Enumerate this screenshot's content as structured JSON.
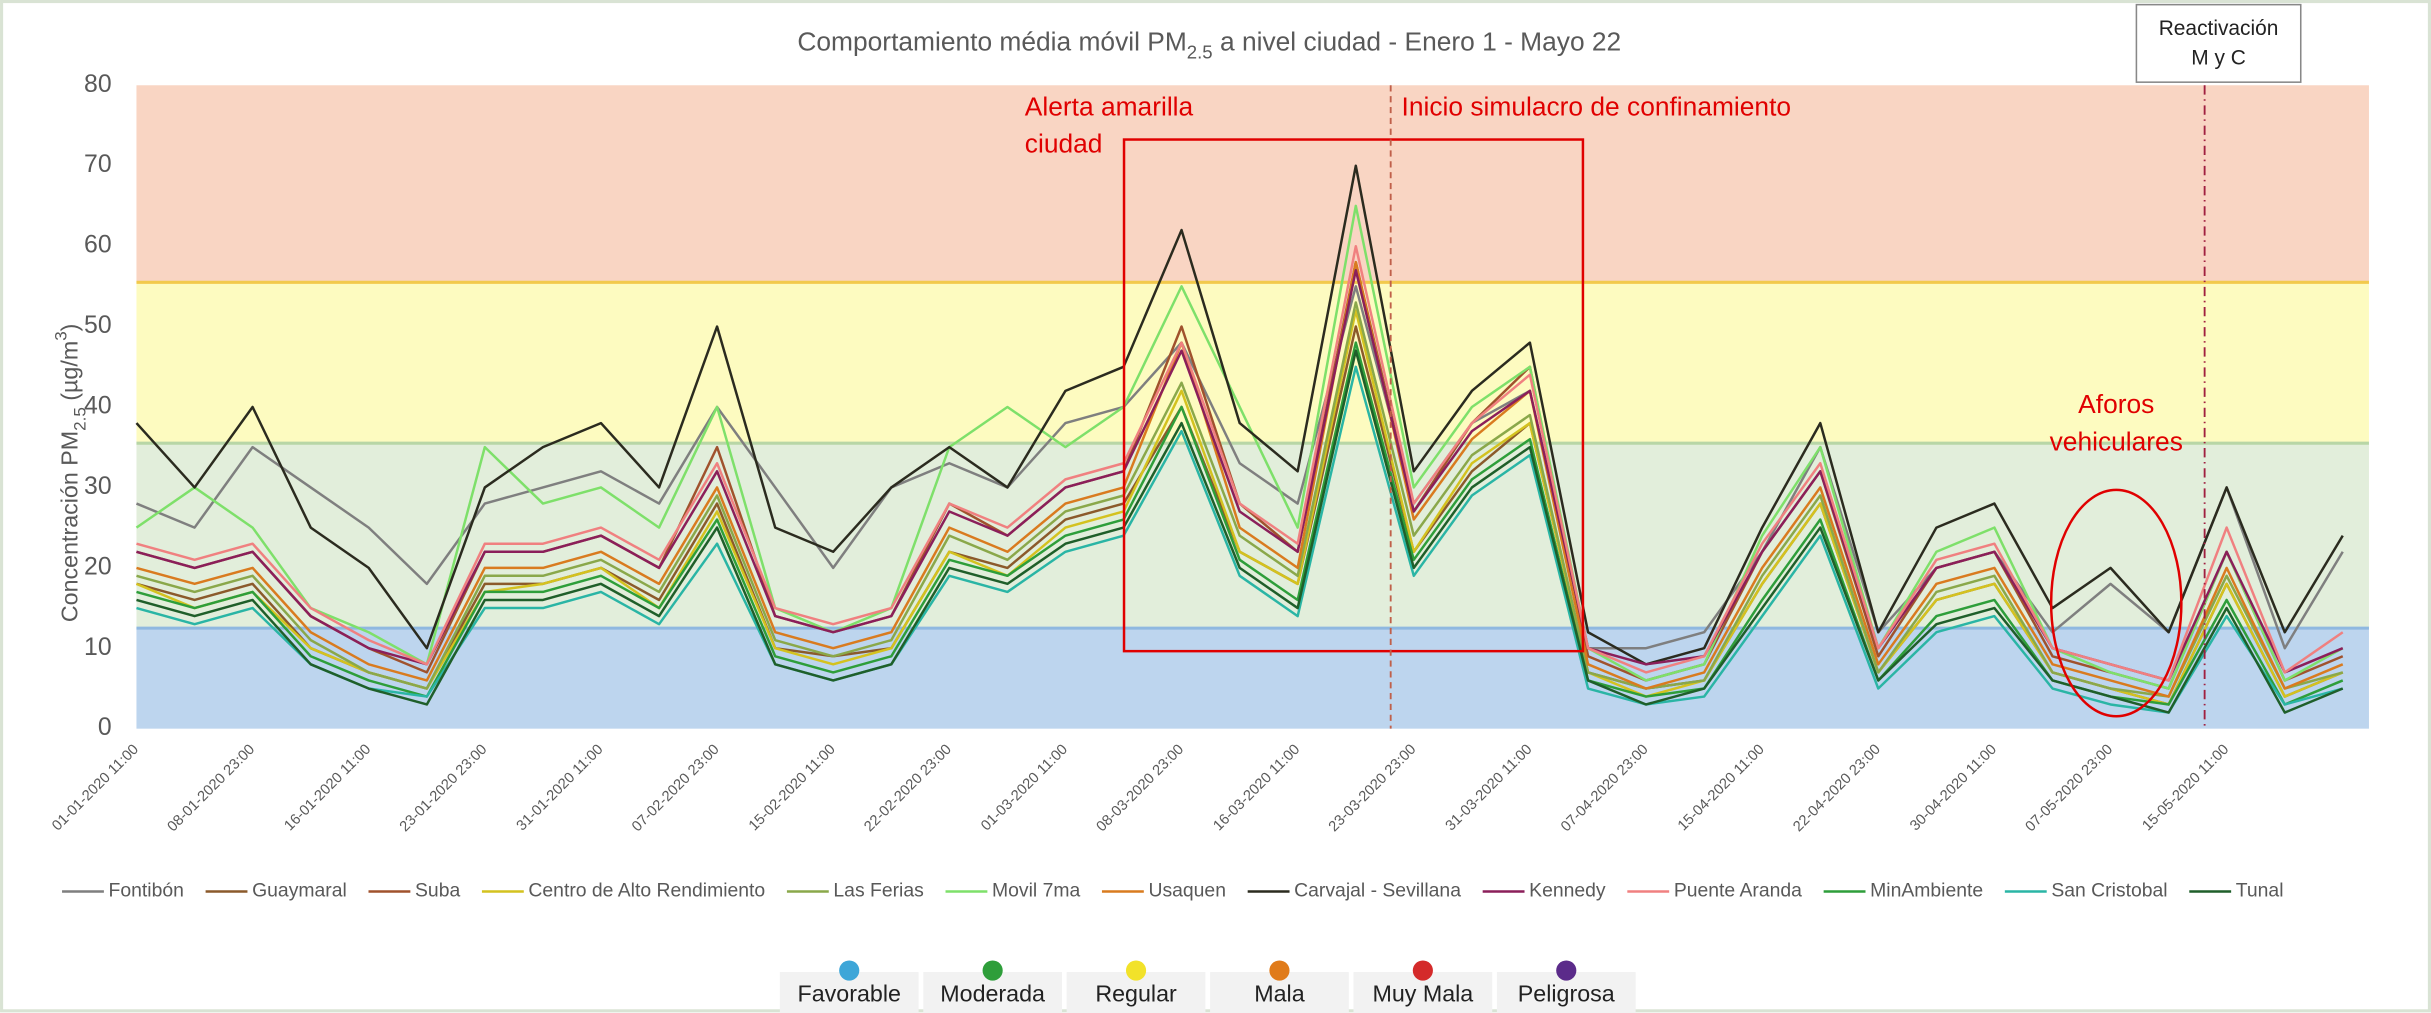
{
  "chart_data": {
    "type": "line",
    "title": [
      "Comportamiento média móvil PM",
      "2.5",
      " a nivel ciudad - Enero 1 - Mayo 22"
    ],
    "y_label": [
      "Concentración PM",
      "2.5",
      " (µg/m",
      "3",
      ")"
    ],
    "categories": [
      "01-01-2020 11:00",
      null,
      "08-01-2020 23:00",
      null,
      "16-01-2020 11:00",
      null,
      "23-01-2020 23:00",
      null,
      "31-01-2020 11:00",
      null,
      "07-02-2020 23:00",
      null,
      "15-02-2020 11:00",
      null,
      "22-02-2020 23:00",
      null,
      "01-03-2020 11:00",
      null,
      "08-03-2020 23:00",
      null,
      "16-03-2020 11:00",
      null,
      "23-03-2020 23:00",
      null,
      "31-03-2020 11:00",
      null,
      "07-04-2020 23:00",
      null,
      "15-04-2020 11:00",
      null,
      "22-04-2020 23:00",
      null,
      "30-04-2020 11:00",
      null,
      "07-05-2020 23:00",
      null,
      "15-05-2020 11:00",
      null,
      null
    ],
    "ylim": [
      0,
      80
    ],
    "yticks": [
      0,
      10,
      20,
      30,
      40,
      50,
      60,
      70,
      80
    ],
    "grid": false,
    "legend": "bottom",
    "bands": [
      {
        "from": 0,
        "to": 12.5,
        "color": "#bdd5ee",
        "edge": "#8fb8e0"
      },
      {
        "from": 12.5,
        "to": 35.5,
        "color": "#e2eedb",
        "edge": "#b8d6a6"
      },
      {
        "from": 35.5,
        "to": 55.5,
        "color": "#fdfbc0",
        "edge": "#f2c94c"
      },
      {
        "from": 55.5,
        "to": 80,
        "color": "#f9d5c3",
        "edge": "#f9d5c3"
      }
    ],
    "series": [
      {
        "name": "Fontibón",
        "color": "#7f7f7f",
        "values": [
          28,
          25,
          35,
          30,
          25,
          18,
          28,
          30,
          32,
          28,
          40,
          30,
          20,
          30,
          33,
          30,
          38,
          40,
          48,
          33,
          28,
          55,
          28,
          38,
          42,
          10,
          10,
          12,
          22,
          35,
          12,
          20,
          22,
          12,
          18,
          12,
          30,
          10,
          22
        ]
      },
      {
        "name": "Guaymaral",
        "color": "#8b5a2b",
        "values": [
          18,
          16,
          18,
          10,
          7,
          5,
          18,
          18,
          20,
          16,
          28,
          10,
          9,
          10,
          22,
          20,
          26,
          28,
          40,
          22,
          18,
          50,
          22,
          32,
          38,
          7,
          5,
          6,
          18,
          28,
          7,
          16,
          18,
          7,
          5,
          3,
          18,
          4,
          7
        ]
      },
      {
        "name": "Suba",
        "color": "#a0522d",
        "values": [
          22,
          20,
          22,
          14,
          10,
          7,
          22,
          22,
          24,
          20,
          35,
          14,
          12,
          14,
          28,
          24,
          30,
          32,
          50,
          28,
          22,
          58,
          27,
          38,
          45,
          9,
          6,
          8,
          22,
          32,
          9,
          20,
          22,
          9,
          7,
          5,
          22,
          6,
          9
        ]
      },
      {
        "name": "Centro de Alto Rendimiento",
        "color": "#d4c21f",
        "values": [
          18,
          15,
          17,
          10,
          7,
          5,
          17,
          18,
          20,
          15,
          27,
          10,
          8,
          10,
          22,
          19,
          25,
          27,
          42,
          22,
          18,
          52,
          22,
          33,
          38,
          7,
          4,
          6,
          18,
          28,
          7,
          16,
          18,
          7,
          5,
          3,
          18,
          4,
          7
        ]
      },
      {
        "name": "Las Ferias",
        "color": "#8aa84a",
        "values": [
          19,
          17,
          19,
          11,
          7,
          5,
          19,
          19,
          21,
          17,
          29,
          11,
          9,
          11,
          24,
          21,
          27,
          29,
          43,
          24,
          19,
          53,
          24,
          34,
          39,
          7,
          5,
          6,
          19,
          29,
          7,
          17,
          19,
          7,
          5,
          4,
          19,
          5,
          7
        ]
      },
      {
        "name": "Movil 7ma",
        "color": "#7ee06a",
        "values": [
          25,
          30,
          25,
          15,
          12,
          8,
          35,
          28,
          30,
          25,
          40,
          15,
          12,
          15,
          35,
          40,
          35,
          40,
          55,
          40,
          25,
          65,
          30,
          40,
          45,
          10,
          6,
          8,
          24,
          35,
          10,
          22,
          25,
          10,
          7,
          5,
          22,
          6,
          10
        ]
      },
      {
        "name": "Usaquen",
        "color": "#d97b1f",
        "values": [
          20,
          18,
          20,
          12,
          8,
          6,
          20,
          20,
          22,
          18,
          30,
          12,
          10,
          12,
          25,
          22,
          28,
          30,
          48,
          25,
          20,
          58,
          26,
          36,
          42,
          8,
          5,
          7,
          20,
          30,
          8,
          18,
          20,
          8,
          6,
          4,
          20,
          5,
          8
        ]
      },
      {
        "name": "Carvajal - Sevillana",
        "color": "#2b2b1f",
        "values": [
          38,
          30,
          40,
          25,
          20,
          10,
          30,
          35,
          38,
          30,
          50,
          25,
          22,
          30,
          35,
          30,
          42,
          45,
          62,
          38,
          32,
          70,
          32,
          42,
          48,
          12,
          8,
          10,
          25,
          38,
          12,
          25,
          28,
          15,
          20,
          12,
          30,
          12,
          24
        ]
      },
      {
        "name": "Kennedy",
        "color": "#8b1f5a",
        "values": [
          22,
          20,
          22,
          14,
          10,
          8,
          22,
          22,
          24,
          20,
          32,
          14,
          12,
          14,
          27,
          24,
          30,
          32,
          47,
          27,
          22,
          57,
          27,
          37,
          42,
          10,
          8,
          9,
          22,
          32,
          10,
          20,
          22,
          10,
          8,
          6,
          22,
          7,
          10
        ]
      },
      {
        "name": "Puente Aranda",
        "color": "#f08080",
        "values": [
          23,
          21,
          23,
          15,
          11,
          8,
          23,
          23,
          25,
          21,
          33,
          15,
          13,
          15,
          28,
          25,
          31,
          33,
          48,
          28,
          23,
          60,
          28,
          38,
          44,
          10,
          7,
          9,
          23,
          33,
          10,
          21,
          23,
          10,
          8,
          6,
          25,
          7,
          12
        ]
      },
      {
        "name": "MinAmbiente",
        "color": "#2e9e3a",
        "values": [
          17,
          15,
          17,
          9,
          6,
          4,
          17,
          17,
          19,
          15,
          26,
          9,
          7,
          9,
          21,
          19,
          24,
          26,
          40,
          21,
          16,
          48,
          21,
          31,
          36,
          6,
          4,
          5,
          16,
          26,
          6,
          14,
          16,
          6,
          4,
          3,
          16,
          3,
          6
        ]
      },
      {
        "name": "San Cristobal",
        "color": "#2ab5a5",
        "values": [
          15,
          13,
          15,
          8,
          5,
          4,
          15,
          15,
          17,
          13,
          23,
          8,
          6,
          8,
          19,
          17,
          22,
          24,
          37,
          19,
          14,
          45,
          19,
          29,
          34,
          5,
          3,
          4,
          14,
          24,
          5,
          12,
          14,
          5,
          3,
          2,
          14,
          3,
          5
        ]
      },
      {
        "name": "Tunal",
        "color": "#1f5f2a",
        "values": [
          16,
          14,
          16,
          8,
          5,
          3,
          16,
          16,
          18,
          14,
          25,
          8,
          6,
          8,
          20,
          18,
          23,
          25,
          38,
          20,
          15,
          47,
          20,
          30,
          35,
          6,
          3,
          5,
          15,
          25,
          6,
          13,
          15,
          6,
          4,
          2,
          15,
          2,
          5
        ]
      }
    ],
    "annotations": {
      "alerta": [
        "Alerta amarilla",
        "ciudad"
      ],
      "simulacro": "Inicio simulacro de confinamiento",
      "aforos": [
        "Aforos",
        "vehiculares"
      ],
      "reactivacion": [
        "Reactivación",
        "M y C"
      ]
    },
    "quality_legend": [
      {
        "name": "Favorable",
        "color": "#3ea6d8"
      },
      {
        "name": "Moderada",
        "color": "#2e9e3a"
      },
      {
        "name": "Regular",
        "color": "#f2e22a"
      },
      {
        "name": "Mala",
        "color": "#e07b1a"
      },
      {
        "name": "Muy Mala",
        "color": "#d42a2a"
      },
      {
        "name": "Peligrosa",
        "color": "#5b2b8a"
      }
    ]
  }
}
